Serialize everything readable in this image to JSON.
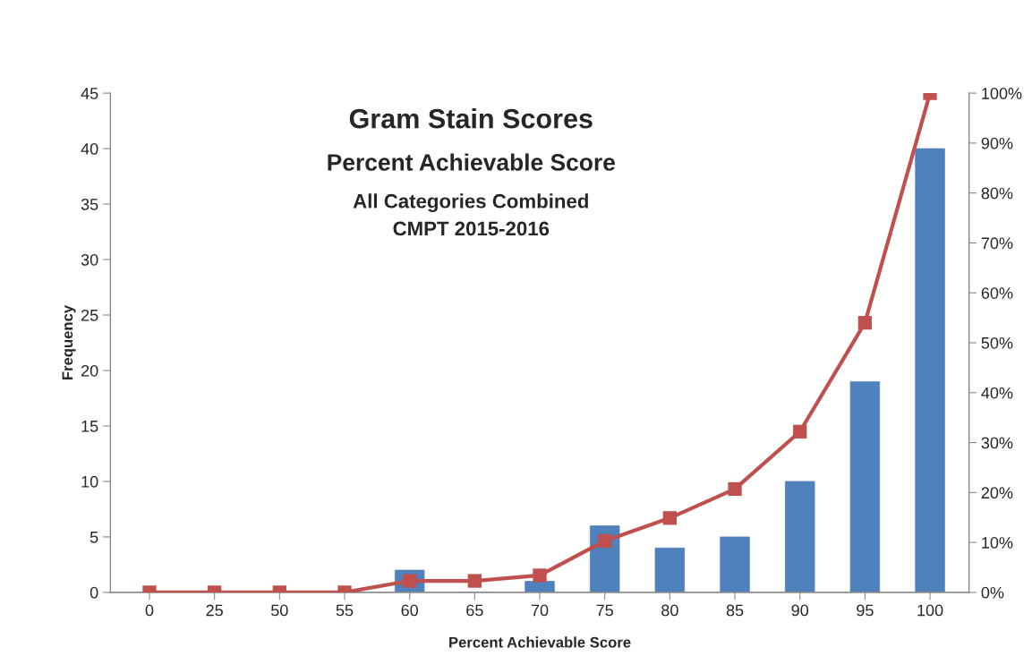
{
  "chart_data": {
    "type": "bar",
    "title": "Gram Stain Scores",
    "subtitle": "Percent Achievable Score",
    "annotations": [
      "All Categories Combined",
      "CMPT 2015-2016"
    ],
    "xlabel": "Percent Achievable Score",
    "ylabel": "Frequency",
    "categories": [
      "0",
      "25",
      "50",
      "55",
      "60",
      "65",
      "70",
      "75",
      "80",
      "85",
      "90",
      "95",
      "100"
    ],
    "series": [
      {
        "color": "#4f81bd",
        "values": [
          0,
          0,
          0,
          0,
          2,
          0,
          1,
          6,
          4,
          5,
          10,
          19,
          40
        ]
      },
      {
        "type": "line",
        "axis": "y2",
        "color": "#c0504d",
        "marker": "square",
        "values": [
          0,
          0,
          0,
          0,
          2.3,
          2.3,
          3.4,
          10.3,
          14.9,
          20.7,
          32.2,
          54.0,
          100
        ]
      }
    ],
    "ylim": [
      0,
      45
    ],
    "yticks": [
      0,
      5,
      10,
      15,
      20,
      25,
      30,
      35,
      40,
      45
    ],
    "y2lim": [
      0,
      100
    ],
    "y2ticks": [
      {
        "value": 0,
        "label": "0%"
      },
      {
        "value": 10,
        "label": "10%"
      },
      {
        "value": 20,
        "label": "20%"
      },
      {
        "value": 30,
        "label": "30%"
      },
      {
        "value": 40,
        "label": "40%"
      },
      {
        "value": 50,
        "label": "50%"
      },
      {
        "value": 60,
        "label": "60%"
      },
      {
        "value": 70,
        "label": "70%"
      },
      {
        "value": 80,
        "label": "80%"
      },
      {
        "value": 90,
        "label": "90%"
      },
      {
        "value": 100,
        "label": "100%"
      }
    ],
    "grid": false,
    "legend": false
  }
}
